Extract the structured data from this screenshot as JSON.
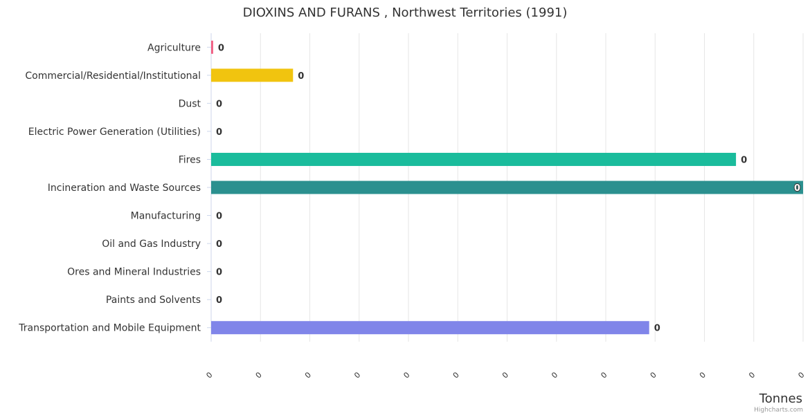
{
  "chart_data": {
    "type": "bar",
    "orientation": "horizontal",
    "title": "DIOXINS AND FURANS , Northwest Territories (1991)",
    "categories": [
      "Agriculture",
      "Commercial/Residential/Institutional",
      "Dust",
      "Electric Power Generation (Utilities)",
      "Fires",
      "Incineration and Waste Sources",
      "Manufacturing",
      "Oil and Gas Industry",
      "Ores and Mineral Industries",
      "Paints and Solvents",
      "Transportation and Mobile Equipment"
    ],
    "values": [
      0.0002,
      0.0083,
      0,
      0,
      0.0532,
      0.06,
      0,
      0,
      0,
      0,
      0.0444
    ],
    "data_labels": [
      "0",
      "0",
      "0",
      "0",
      "0",
      "0",
      "0",
      "0",
      "0",
      "0",
      "0"
    ],
    "colors": [
      "#f15c80",
      "#f1c40f",
      "#2b908f",
      "#e4d354",
      "#1abc9c",
      "#2b908f",
      "#90ed7d",
      "#7cb5ec",
      "#434348",
      "#f7a35c",
      "#8085e9"
    ],
    "xlim": [
      0,
      0.06
    ],
    "tick_labels": [
      "0",
      "0",
      "0",
      "0",
      "0",
      "0",
      "0",
      "0",
      "0",
      "0",
      "0",
      "0",
      "0"
    ],
    "value_axis_title": "Tonnes",
    "grid": true,
    "legend": "none"
  },
  "credits": "Highcharts.com"
}
